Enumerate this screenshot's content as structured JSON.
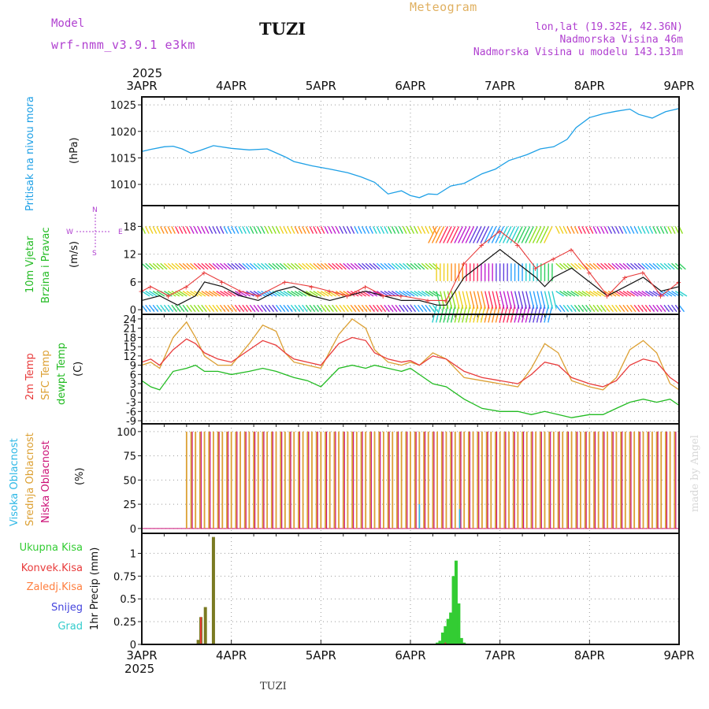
{
  "header": {
    "model_label": "Model",
    "model_name": "wrf-nmm_v3.9.1 e3km",
    "station": "TUZI",
    "title": "Meteogram",
    "coords": "lon,lat (19.32E, 42.36N)",
    "elevation": "Nadmorska Visina 46m",
    "model_elevation": "Nadmorska Visina u modelu 143.131m",
    "footer_station": "TUZI",
    "credit": "made by Angel"
  },
  "colors": {
    "pressure": "#1ea0e6",
    "temp": "#e83b3b",
    "sfc_temp": "#dca033",
    "dewpt": "#22bb22",
    "visoka": "#2eb8e6",
    "srednja": "#dca033",
    "niska": "#cc1177",
    "ukupna": "#33cc33",
    "konvek": "#e83b3b",
    "zaledj": "#ff7f3f",
    "snijeg": "#4444dd",
    "grad": "#33cccc",
    "purple": "#b040d0",
    "title": "#e0b060"
  },
  "chart_data": {
    "type": "meteogram",
    "x_axis": {
      "year": "2025",
      "ticks": [
        "3APR",
        "4APR",
        "5APR",
        "6APR",
        "7APR",
        "8APR",
        "9APR"
      ],
      "range_days": [
        0,
        6
      ]
    },
    "pressure": {
      "label": "Pritisak na nivou mora",
      "unit": "(hPa)",
      "yticks": [
        1010,
        1015,
        1020,
        1025
      ],
      "ylim": [
        1006,
        1026.5
      ],
      "x": [
        0,
        0.1,
        0.25,
        0.35,
        0.45,
        0.55,
        0.65,
        0.8,
        1.0,
        1.2,
        1.4,
        1.6,
        1.7,
        1.9,
        2.1,
        2.3,
        2.45,
        2.6,
        2.75,
        2.9,
        3.0,
        3.1,
        3.2,
        3.3,
        3.45,
        3.6,
        3.8,
        3.95,
        4.1,
        4.3,
        4.45,
        4.6,
        4.75,
        4.85,
        5.0,
        5.15,
        5.3,
        5.45,
        5.55,
        5.7,
        5.85,
        6.0
      ],
      "values": [
        1016.2,
        1016.6,
        1017.1,
        1017.2,
        1016.7,
        1015.9,
        1016.4,
        1017.3,
        1016.8,
        1016.5,
        1016.7,
        1015.2,
        1014.3,
        1013.5,
        1012.9,
        1012.2,
        1011.4,
        1010.4,
        1008.2,
        1008.8,
        1007.9,
        1007.5,
        1008.2,
        1008.1,
        1009.7,
        1010.2,
        1012.0,
        1012.9,
        1014.5,
        1015.6,
        1016.7,
        1017.1,
        1018.5,
        1020.7,
        1022.6,
        1023.3,
        1023.8,
        1024.2,
        1023.2,
        1022.5,
        1023.7,
        1024.3
      ]
    },
    "wind": {
      "label1": "10m Vjetar",
      "label2": "Brzina i Pravac",
      "unit": "(m/s)",
      "yticks": [
        0,
        6,
        12,
        18
      ],
      "ylim": [
        -1,
        22.5
      ],
      "compass": [
        "N",
        "W",
        "E",
        "S"
      ],
      "barb_rows": [
        {
          "level": 1,
          "dir_deg": 240,
          "speed": 6
        },
        {
          "level": 4,
          "dir_deg": 220,
          "speed": 8
        },
        {
          "level": 10,
          "dir_deg": 230,
          "speed": 7
        },
        {
          "level": 18,
          "dir_deg": 250,
          "speed": 8
        }
      ],
      "speed_x": [
        0,
        0.2,
        0.4,
        0.6,
        0.7,
        0.9,
        1.1,
        1.3,
        1.5,
        1.7,
        1.9,
        2.1,
        2.3,
        2.5,
        2.7,
        2.9,
        3.1,
        3.3,
        3.4,
        3.6,
        3.8,
        4.0,
        4.2,
        4.4,
        4.5,
        4.6,
        4.8,
        5.0,
        5.2,
        5.4,
        5.6,
        5.8,
        6.0
      ],
      "speed": [
        2,
        3,
        1,
        3,
        6,
        5,
        3,
        2,
        4,
        5,
        3,
        2,
        3,
        4,
        3,
        2,
        2,
        1,
        1,
        7,
        10,
        13,
        10,
        7,
        5,
        7,
        9,
        6,
        3,
        5,
        7,
        4,
        5
      ],
      "gust_x": [
        0,
        0.1,
        0.3,
        0.5,
        0.7,
        0.9,
        1.1,
        1.3,
        1.6,
        1.9,
        2.1,
        2.3,
        2.5,
        2.7,
        2.9,
        3.2,
        3.4,
        3.6,
        3.8,
        4.0,
        4.2,
        4.4,
        4.6,
        4.8,
        5.0,
        5.2,
        5.4,
        5.6,
        5.8,
        6.0
      ],
      "gust": [
        4,
        5,
        3,
        5,
        8,
        6,
        4,
        3,
        6,
        5,
        4,
        3,
        5,
        3,
        3,
        2,
        2,
        10,
        14,
        17,
        14,
        9,
        11,
        13,
        8,
        3,
        7,
        8,
        3,
        6
      ]
    },
    "temperature": {
      "labels": [
        "2m Temp",
        "SFC Temp",
        "dewpt Temp"
      ],
      "unit": "(C)",
      "yticks": [
        -9,
        -6,
        -3,
        0,
        3,
        6,
        9,
        12,
        15,
        18,
        21,
        24
      ],
      "ylim": [
        -10,
        25.5
      ],
      "x": [
        0,
        0.1,
        0.2,
        0.35,
        0.5,
        0.6,
        0.7,
        0.85,
        1.0,
        1.2,
        1.35,
        1.5,
        1.6,
        1.7,
        1.85,
        2.0,
        2.2,
        2.35,
        2.5,
        2.6,
        2.75,
        2.9,
        3.0,
        3.1,
        3.25,
        3.4,
        3.6,
        3.8,
        4.0,
        4.2,
        4.35,
        4.5,
        4.65,
        4.8,
        5.0,
        5.15,
        5.3,
        5.45,
        5.6,
        5.75,
        5.9,
        6.0
      ],
      "t2m": [
        10,
        11,
        9,
        14,
        17.5,
        16,
        13,
        11,
        10,
        14,
        17,
        15.5,
        13,
        11,
        10,
        9,
        16,
        18,
        17,
        13,
        11,
        10,
        10.5,
        9,
        12,
        11,
        7,
        5,
        4,
        3,
        6,
        10,
        9,
        5,
        3,
        2,
        4,
        9,
        11,
        10,
        5,
        3
      ],
      "sfc": [
        9,
        10,
        8,
        18,
        23,
        18,
        12,
        9,
        9,
        16,
        22,
        20,
        13,
        10,
        9,
        8,
        19,
        24,
        21,
        14,
        10,
        9,
        10,
        9,
        13,
        11,
        5,
        4,
        3,
        2,
        8,
        16,
        13,
        4,
        2,
        1,
        5,
        14,
        17,
        13,
        3,
        1
      ],
      "dewpt": [
        4,
        2,
        1,
        7,
        8,
        9,
        7,
        7,
        6,
        7,
        8,
        7,
        6,
        5,
        4,
        2,
        8,
        9,
        8,
        9,
        8,
        7,
        8,
        6,
        3,
        2,
        -2,
        -5,
        -6,
        -6,
        -7,
        -6,
        -7,
        -8,
        -7,
        -7,
        -5,
        -3,
        -2,
        -3,
        -2,
        -4
      ]
    },
    "cloud": {
      "labels": [
        "Visoka Oblacnost",
        "Srednja Oblacnost",
        "Niska Oblacnost"
      ],
      "unit": "(%)",
      "yticks": [
        0,
        25,
        50,
        75,
        100
      ],
      "ylim": [
        -5,
        108
      ],
      "srednja_bars": [
        [
          0.5,
          100
        ],
        [
          0.55,
          100
        ],
        [
          0.6,
          100
        ],
        [
          0.65,
          100
        ],
        [
          0.7,
          100
        ],
        [
          0.75,
          100
        ],
        [
          0.8,
          100
        ],
        [
          0.85,
          100
        ],
        [
          0.9,
          100
        ],
        [
          0.95,
          100
        ],
        [
          1.0,
          100
        ],
        [
          1.05,
          100
        ],
        [
          1.1,
          100
        ],
        [
          1.15,
          100
        ],
        [
          1.2,
          100
        ],
        [
          1.25,
          100
        ],
        [
          1.3,
          100
        ],
        [
          1.35,
          100
        ],
        [
          1.4,
          100
        ],
        [
          1.45,
          100
        ],
        [
          1.5,
          100
        ],
        [
          1.55,
          100
        ],
        [
          1.6,
          100
        ],
        [
          1.65,
          100
        ],
        [
          1.7,
          100
        ],
        [
          1.75,
          100
        ],
        [
          1.8,
          100
        ],
        [
          1.85,
          100
        ],
        [
          1.9,
          100
        ],
        [
          1.95,
          100
        ],
        [
          2.0,
          100
        ],
        [
          2.05,
          100
        ],
        [
          2.1,
          100
        ],
        [
          2.15,
          100
        ],
        [
          2.2,
          100
        ],
        [
          2.25,
          100
        ],
        [
          2.3,
          100
        ],
        [
          2.35,
          100
        ],
        [
          2.4,
          100
        ],
        [
          2.45,
          100
        ],
        [
          2.5,
          100
        ],
        [
          2.55,
          100
        ],
        [
          2.6,
          100
        ],
        [
          2.65,
          100
        ],
        [
          2.7,
          100
        ],
        [
          2.75,
          100
        ],
        [
          2.8,
          100
        ],
        [
          2.85,
          100
        ],
        [
          2.9,
          100
        ],
        [
          2.95,
          100
        ],
        [
          3.0,
          100
        ],
        [
          3.05,
          100
        ],
        [
          3.1,
          100
        ],
        [
          3.15,
          100
        ],
        [
          3.2,
          100
        ],
        [
          3.25,
          100
        ],
        [
          3.3,
          100
        ],
        [
          3.35,
          100
        ],
        [
          3.4,
          100
        ],
        [
          3.45,
          100
        ],
        [
          3.5,
          100
        ],
        [
          3.55,
          100
        ],
        [
          3.6,
          100
        ],
        [
          3.65,
          100
        ],
        [
          3.7,
          100
        ],
        [
          3.75,
          100
        ],
        [
          3.8,
          100
        ],
        [
          3.85,
          100
        ],
        [
          3.9,
          100
        ],
        [
          3.95,
          100
        ],
        [
          4.0,
          100
        ],
        [
          4.05,
          100
        ],
        [
          4.1,
          100
        ],
        [
          4.15,
          100
        ],
        [
          4.2,
          100
        ],
        [
          4.25,
          100
        ],
        [
          4.3,
          100
        ],
        [
          4.35,
          100
        ],
        [
          4.4,
          100
        ],
        [
          4.45,
          100
        ],
        [
          4.5,
          100
        ],
        [
          4.55,
          100
        ],
        [
          4.6,
          100
        ],
        [
          4.65,
          100
        ],
        [
          4.7,
          100
        ],
        [
          4.75,
          100
        ],
        [
          4.8,
          100
        ],
        [
          4.85,
          100
        ],
        [
          4.9,
          100
        ],
        [
          4.95,
          100
        ],
        [
          5.0,
          100
        ],
        [
          5.05,
          100
        ],
        [
          5.1,
          100
        ],
        [
          5.15,
          100
        ],
        [
          5.2,
          100
        ],
        [
          5.25,
          100
        ],
        [
          5.3,
          100
        ],
        [
          5.35,
          100
        ],
        [
          5.4,
          100
        ],
        [
          5.45,
          100
        ],
        [
          5.5,
          100
        ],
        [
          5.55,
          100
        ],
        [
          5.6,
          100
        ],
        [
          5.65,
          100
        ],
        [
          5.7,
          100
        ],
        [
          5.75,
          100
        ],
        [
          5.8,
          100
        ],
        [
          5.85,
          100
        ],
        [
          5.9,
          100
        ],
        [
          5.95,
          100
        ]
      ],
      "niska_bars": [
        [
          0.55,
          100
        ],
        [
          0.65,
          100
        ],
        [
          0.75,
          100
        ],
        [
          0.85,
          100
        ],
        [
          0.95,
          100
        ],
        [
          1.05,
          100
        ],
        [
          1.15,
          100
        ],
        [
          1.25,
          100
        ],
        [
          1.35,
          100
        ],
        [
          1.45,
          100
        ],
        [
          1.55,
          100
        ],
        [
          1.65,
          100
        ],
        [
          1.75,
          100
        ],
        [
          1.85,
          100
        ],
        [
          1.95,
          100
        ],
        [
          2.05,
          100
        ],
        [
          2.15,
          100
        ],
        [
          2.25,
          100
        ],
        [
          2.35,
          100
        ],
        [
          2.45,
          100
        ],
        [
          2.55,
          100
        ],
        [
          2.65,
          100
        ],
        [
          2.75,
          100
        ],
        [
          2.85,
          100
        ],
        [
          2.95,
          100
        ],
        [
          3.05,
          100
        ],
        [
          3.15,
          100
        ],
        [
          3.25,
          100
        ],
        [
          3.35,
          100
        ],
        [
          3.45,
          100
        ],
        [
          3.55,
          100
        ],
        [
          3.65,
          100
        ],
        [
          3.75,
          100
        ],
        [
          3.85,
          100
        ],
        [
          3.95,
          100
        ],
        [
          4.05,
          100
        ],
        [
          4.15,
          100
        ],
        [
          4.25,
          100
        ],
        [
          4.35,
          100
        ],
        [
          4.45,
          100
        ],
        [
          4.55,
          100
        ],
        [
          4.65,
          100
        ],
        [
          4.75,
          100
        ],
        [
          4.85,
          100
        ],
        [
          4.95,
          100
        ],
        [
          5.05,
          100
        ],
        [
          5.15,
          100
        ],
        [
          5.25,
          100
        ],
        [
          5.35,
          100
        ],
        [
          5.45,
          100
        ],
        [
          5.55,
          100
        ],
        [
          5.65,
          100
        ],
        [
          5.75,
          100
        ],
        [
          5.85,
          100
        ],
        [
          5.95,
          100
        ]
      ],
      "visoka_bars": [
        [
          3.1,
          25
        ],
        [
          3.55,
          20
        ]
      ]
    },
    "precip": {
      "labels": [
        "Ukupna Kisa",
        "Konvek.Kisa",
        "Zaledj.Kisa",
        "Snijeg",
        "Grad"
      ],
      "axis_label": "1hr Precip (mm)",
      "yticks": [
        0,
        0.25,
        0.5,
        0.75,
        1
      ],
      "ytick_labels": [
        "0",
        "0.25",
        "0.5",
        "0.75",
        "1"
      ],
      "ylim": [
        0,
        1.22
      ],
      "ukupna": [
        [
          0.63,
          0.05
        ],
        [
          0.66,
          0.3
        ],
        [
          0.71,
          0.41
        ],
        [
          0.8,
          1.18
        ],
        [
          3.3,
          0.02
        ],
        [
          3.33,
          0.04
        ],
        [
          3.36,
          0.13
        ],
        [
          3.39,
          0.2
        ],
        [
          3.42,
          0.28
        ],
        [
          3.45,
          0.35
        ],
        [
          3.48,
          0.75
        ],
        [
          3.51,
          0.92
        ],
        [
          3.54,
          0.45
        ],
        [
          3.57,
          0.07
        ],
        [
          3.6,
          0.02
        ]
      ],
      "konvek": [
        [
          0.66,
          0.3
        ],
        [
          3.39,
          0.02
        ]
      ]
    },
    "bottom_year": "2025"
  }
}
